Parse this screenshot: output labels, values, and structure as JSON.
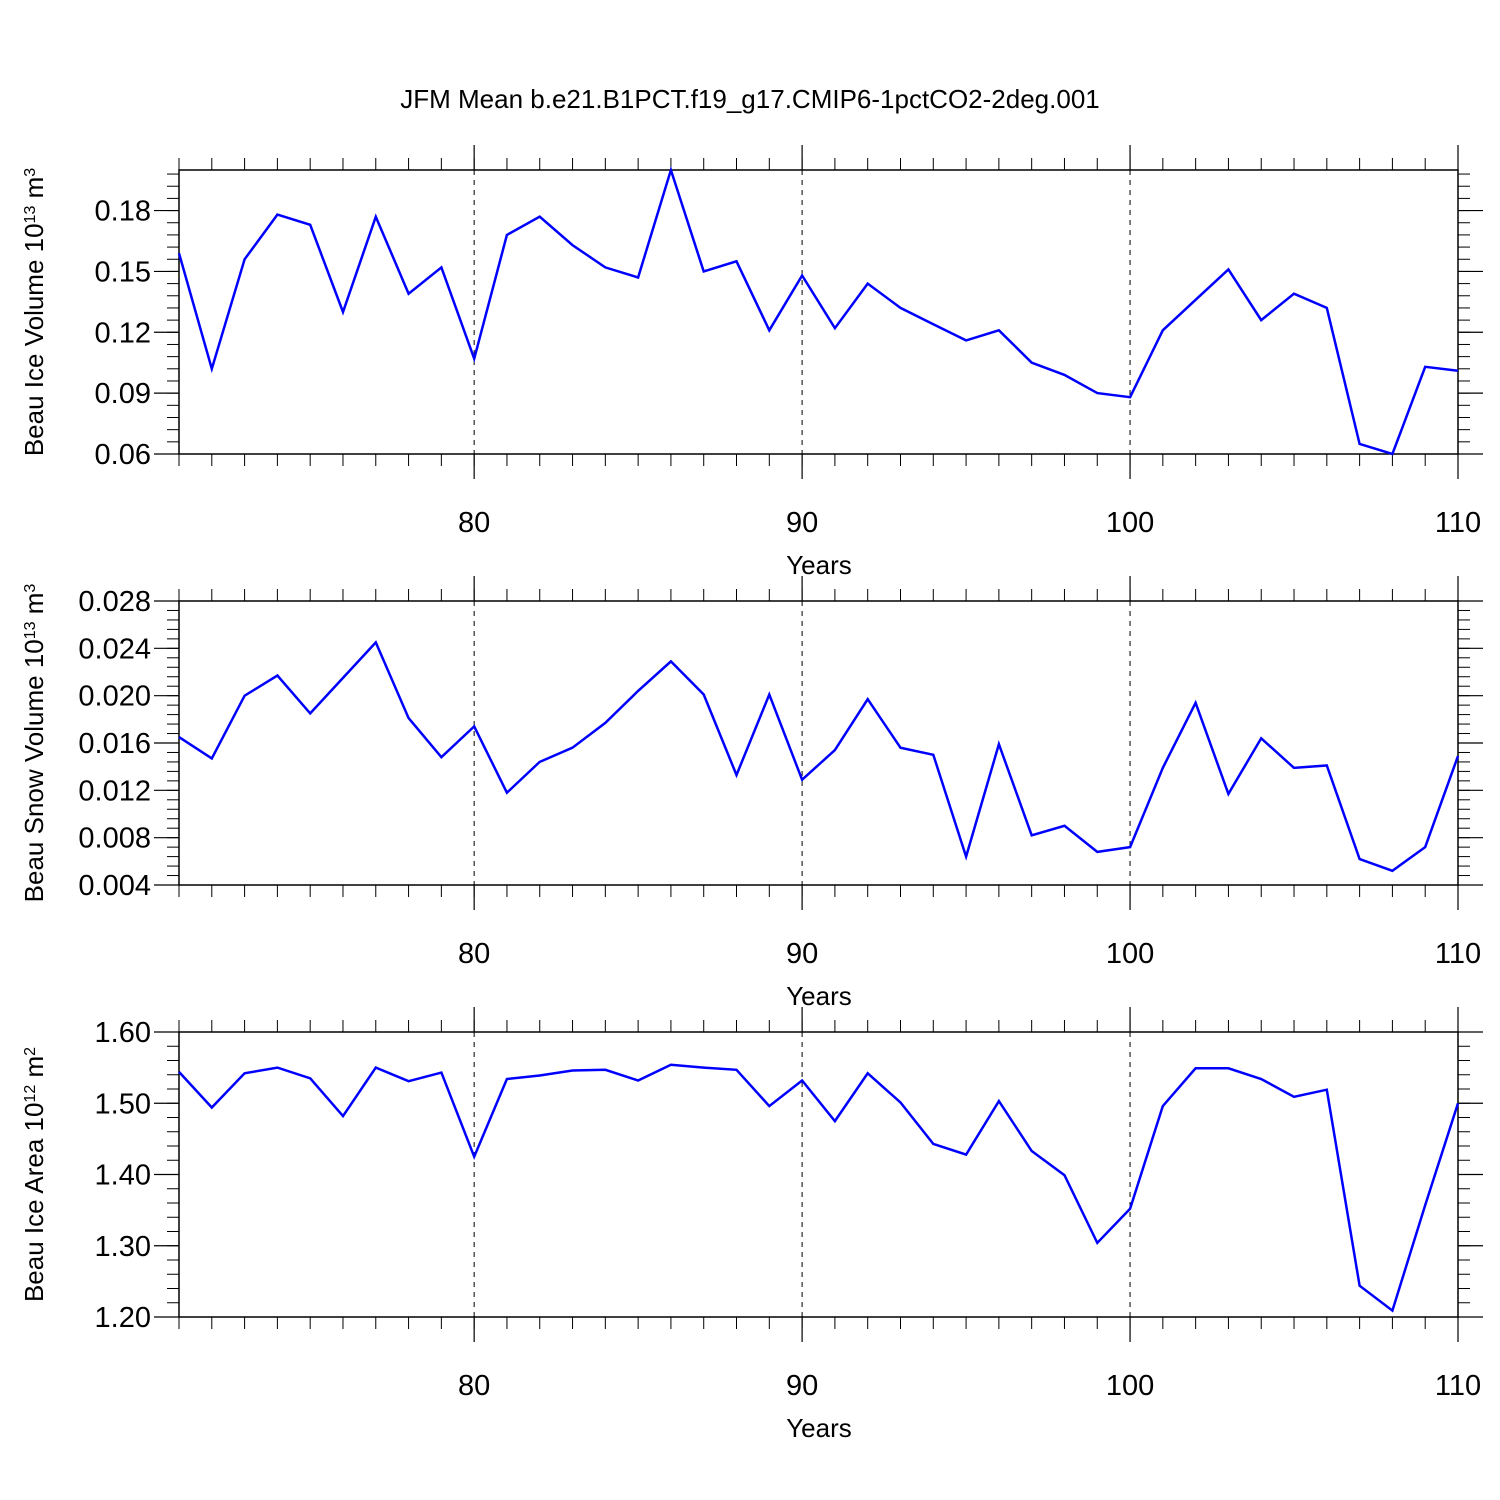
{
  "title": "JFM Mean b.e21.B1PCT.f19_g17.CMIP6-1pctCO2-2deg.001",
  "chart_data": [
    {
      "type": "line",
      "xlabel": "Years",
      "ylabel": "Beau Ice Volume 10",
      "ylabel_exp": "13",
      "ylabel_unit": " m",
      "ylabel_unit_exp": "3",
      "xlim": [
        71,
        110
      ],
      "ylim": [
        0.06,
        0.2
      ],
      "xticks": [
        80,
        90,
        100,
        110
      ],
      "xtick_labels": [
        "80",
        "90",
        "100",
        "110"
      ],
      "yticks": [
        0.06,
        0.09,
        0.12,
        0.15,
        0.18
      ],
      "ytick_labels": [
        "0.06",
        "0.09",
        "0.12",
        "0.15",
        "0.18"
      ],
      "color": "#0000ff",
      "x": [
        71,
        72,
        73,
        74,
        75,
        76,
        77,
        78,
        79,
        80,
        81,
        82,
        83,
        84,
        85,
        86,
        87,
        88,
        89,
        90,
        91,
        92,
        93,
        94,
        95,
        96,
        97,
        98,
        99,
        100,
        101,
        102,
        103,
        104,
        105,
        106,
        107,
        108,
        109,
        110
      ],
      "values": [
        0.159,
        0.102,
        0.156,
        0.178,
        0.173,
        0.13,
        0.177,
        0.139,
        0.152,
        0.107,
        0.168,
        0.177,
        0.163,
        0.152,
        0.147,
        0.2,
        0.15,
        0.155,
        0.121,
        0.148,
        0.122,
        0.144,
        0.132,
        0.124,
        0.116,
        0.121,
        0.105,
        0.099,
        0.09,
        0.088,
        0.121,
        0.136,
        0.151,
        0.126,
        0.139,
        0.132,
        0.065,
        0.06,
        0.103,
        0.101
      ]
    },
    {
      "type": "line",
      "xlabel": "Years",
      "ylabel": "Beau Snow Volume 10",
      "ylabel_exp": "13",
      "ylabel_unit": " m",
      "ylabel_unit_exp": "3",
      "xlim": [
        71,
        110
      ],
      "ylim": [
        0.004,
        0.028
      ],
      "xticks": [
        80,
        90,
        100,
        110
      ],
      "xtick_labels": [
        "80",
        "90",
        "100",
        "110"
      ],
      "yticks": [
        0.004,
        0.008,
        0.012,
        0.016,
        0.02,
        0.024,
        0.028
      ],
      "ytick_labels": [
        "0.004",
        "0.008",
        "0.012",
        "0.016",
        "0.020",
        "0.024",
        "0.028"
      ],
      "color": "#0000ff",
      "x": [
        71,
        72,
        73,
        74,
        75,
        76,
        77,
        78,
        79,
        80,
        81,
        82,
        83,
        84,
        85,
        86,
        87,
        88,
        89,
        90,
        91,
        92,
        93,
        94,
        95,
        96,
        97,
        98,
        99,
        100,
        101,
        102,
        103,
        104,
        105,
        106,
        107,
        108,
        109,
        110
      ],
      "values": [
        0.0165,
        0.0147,
        0.02,
        0.0217,
        0.0185,
        0.0215,
        0.0245,
        0.0181,
        0.0148,
        0.0174,
        0.0118,
        0.0144,
        0.0156,
        0.0177,
        0.0204,
        0.0229,
        0.0201,
        0.0133,
        0.0201,
        0.0129,
        0.0154,
        0.0197,
        0.0156,
        0.015,
        0.0064,
        0.0159,
        0.0082,
        0.009,
        0.0068,
        0.0072,
        0.0139,
        0.0194,
        0.0117,
        0.0164,
        0.0139,
        0.0141,
        0.0062,
        0.0052,
        0.0072,
        0.0149
      ]
    },
    {
      "type": "line",
      "xlabel": "Years",
      "ylabel": "Beau Ice Area 10",
      "ylabel_exp": "12",
      "ylabel_unit": " m",
      "ylabel_unit_exp": "2",
      "xlim": [
        71,
        110
      ],
      "ylim": [
        1.2,
        1.6
      ],
      "xticks": [
        80,
        90,
        100,
        110
      ],
      "xtick_labels": [
        "80",
        "90",
        "100",
        "110"
      ],
      "yticks": [
        1.2,
        1.3,
        1.4,
        1.5,
        1.6
      ],
      "ytick_labels": [
        "1.20",
        "1.30",
        "1.40",
        "1.50",
        "1.60"
      ],
      "color": "#0000ff",
      "x": [
        71,
        72,
        73,
        74,
        75,
        76,
        77,
        78,
        79,
        80,
        81,
        82,
        83,
        84,
        85,
        86,
        87,
        88,
        89,
        90,
        91,
        92,
        93,
        94,
        95,
        96,
        97,
        98,
        99,
        100,
        101,
        102,
        103,
        104,
        105,
        106,
        107,
        108,
        109,
        110
      ],
      "values": [
        1.544,
        1.494,
        1.542,
        1.55,
        1.535,
        1.482,
        1.55,
        1.531,
        1.543,
        1.425,
        1.534,
        1.539,
        1.546,
        1.547,
        1.532,
        1.554,
        1.55,
        1.547,
        1.496,
        1.532,
        1.475,
        1.542,
        1.501,
        1.443,
        1.428,
        1.503,
        1.433,
        1.399,
        1.304,
        1.352,
        1.496,
        1.549,
        1.549,
        1.534,
        1.509,
        1.519,
        1.244,
        1.209,
        1.357,
        1.5
      ]
    }
  ]
}
